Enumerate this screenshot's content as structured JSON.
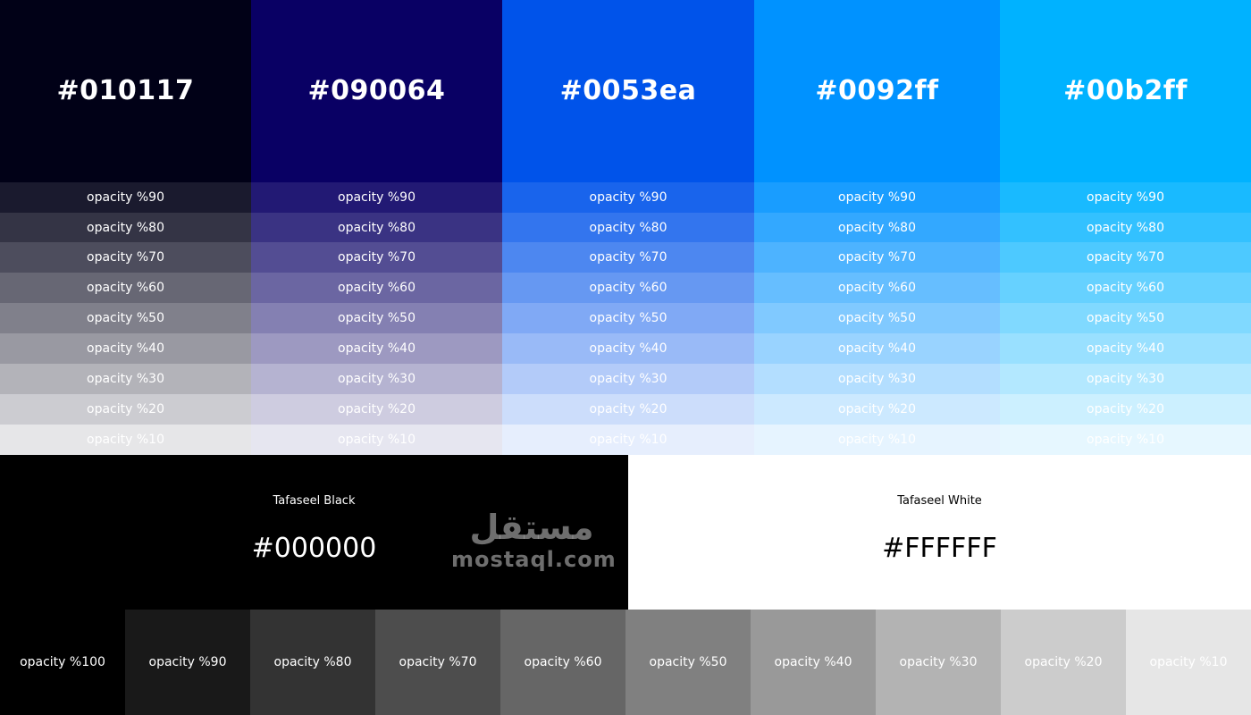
{
  "palette": [
    {
      "hex": "#010117",
      "label": "#010117"
    },
    {
      "hex": "#090064",
      "label": "#090064"
    },
    {
      "hex": "#0053ea",
      "label": "#0053ea"
    },
    {
      "hex": "#0092ff",
      "label": "#0092ff"
    },
    {
      "hex": "#00b2ff",
      "label": "#00b2ff"
    }
  ],
  "opacity_rows": [
    {
      "value": 90,
      "label": "opacity %90"
    },
    {
      "value": 80,
      "label": "opacity %80"
    },
    {
      "value": 70,
      "label": "opacity %70"
    },
    {
      "value": 60,
      "label": "opacity %60"
    },
    {
      "value": 50,
      "label": "opacity %50"
    },
    {
      "value": 40,
      "label": "opacity %40"
    },
    {
      "value": 30,
      "label": "opacity %30"
    },
    {
      "value": 20,
      "label": "opacity %20"
    },
    {
      "value": 10,
      "label": "opacity %10"
    }
  ],
  "black": {
    "name": "Tafaseel Black",
    "hex": "#000000"
  },
  "white": {
    "name": "Tafaseel White",
    "hex": "#FFFFFF"
  },
  "grey_steps": [
    {
      "value": 100,
      "label": "opacity %100"
    },
    {
      "value": 90,
      "label": "opacity %90"
    },
    {
      "value": 80,
      "label": "opacity %80"
    },
    {
      "value": 70,
      "label": "opacity %70"
    },
    {
      "value": 60,
      "label": "opacity %60"
    },
    {
      "value": 50,
      "label": "opacity %50"
    },
    {
      "value": 40,
      "label": "opacity %40"
    },
    {
      "value": 30,
      "label": "opacity %30"
    },
    {
      "value": 20,
      "label": "opacity %20"
    },
    {
      "value": 10,
      "label": "opacity %10"
    }
  ],
  "watermark": {
    "arabic": "مستقل",
    "latin": "mostaql.com"
  }
}
